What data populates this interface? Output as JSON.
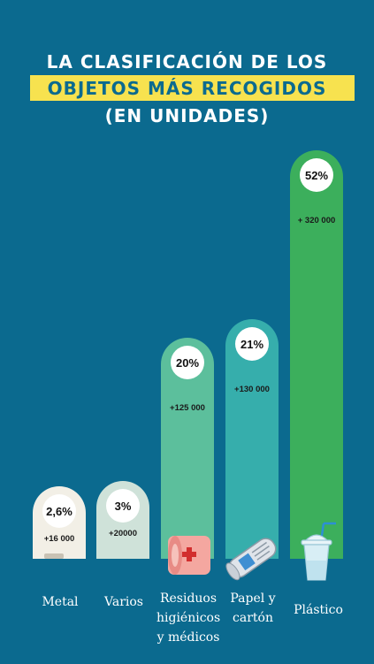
{
  "title": {
    "line1": "LA CLASIFICACIÓN DE LOS",
    "line2": "OBJETOS MÁS RECOGIDOS",
    "line3": "(EN UNIDADES)"
  },
  "colors": {
    "background": "#0b6a8f",
    "highlight": "#f7e24f",
    "title_text": "#ffffff"
  },
  "chart_data": {
    "type": "bar",
    "categories": [
      "Metal",
      "Varios",
      "Residuos higiénicos y médicos",
      "Papel y cartón",
      "Plástico"
    ],
    "category_lines": [
      [
        "Metal"
      ],
      [
        "Varios"
      ],
      [
        "Residuos",
        "higiénicos",
        "y médicos"
      ],
      [
        "Papel y",
        "cartón"
      ],
      [
        "Plástico"
      ]
    ],
    "percent_labels": [
      "2,6%",
      "3%",
      "20%",
      "21%",
      "52%"
    ],
    "units_labels": [
      "+16 000",
      "+20000",
      "+125 000",
      "+130 000",
      "+ 320 000"
    ],
    "values": [
      16000,
      20000,
      125000,
      130000,
      320000
    ],
    "colors": [
      "#f2efe6",
      "#cfe2d9",
      "#5cbf9c",
      "#36aeac",
      "#3caf5c"
    ],
    "icons": [
      "tin-can-icon",
      "",
      "bandage-icon",
      "newspaper-icon",
      "plastic-cup-icon"
    ]
  }
}
